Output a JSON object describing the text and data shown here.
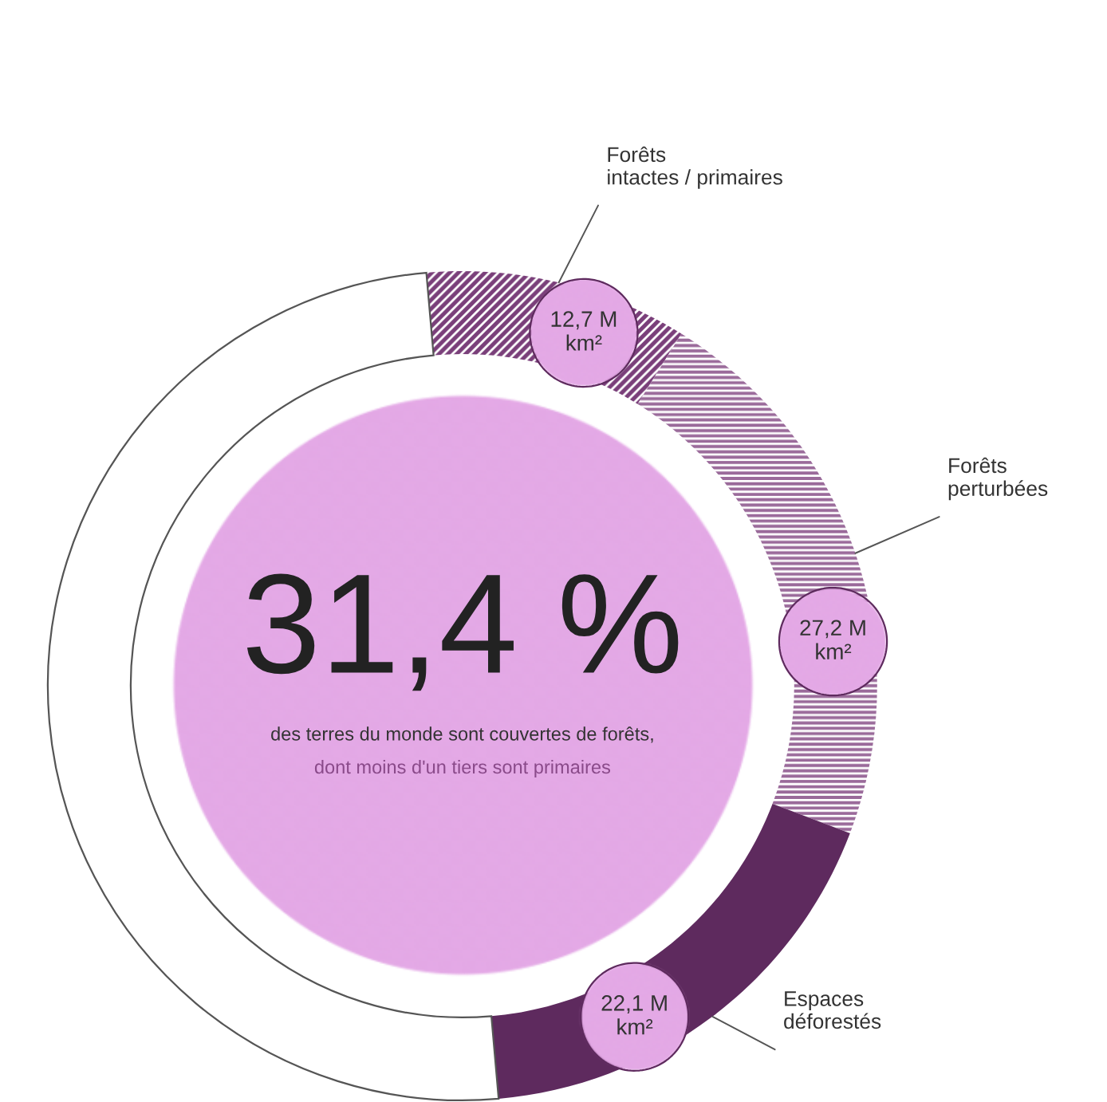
{
  "chart_data": {
    "type": "donut",
    "categories": [
      "Forêts\nintactes / primaires",
      "Forêts\nperturbées",
      "Espaces\ndéforestés",
      null
    ],
    "values": [
      12.7,
      27.2,
      22.1,
      62
    ],
    "colors": [
      "#7a3f7a",
      "#9a6a9a",
      "#5e2a5e",
      "#ffffff"
    ],
    "value_labels": [
      "12,7 M km²",
      "27,2 M km²",
      "22,1 M km²",
      null
    ],
    "annotations": [
      "31,4 %",
      "des terres du monde sont couvertes de forêts,",
      "dont moins d'un tiers sont primaires"
    ]
  }
}
